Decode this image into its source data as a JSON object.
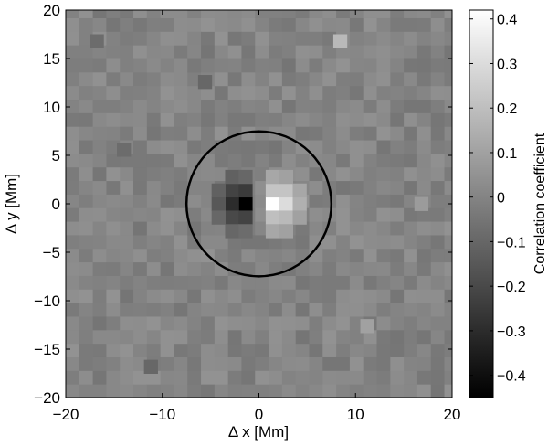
{
  "chart_data": {
    "type": "heatmap",
    "title": "",
    "xlabel": "Δ x [Mm]",
    "ylabel": "Δ y [Mm]",
    "xlim": [
      -20,
      20
    ],
    "ylim": [
      -20,
      20
    ],
    "xticks": [
      -20,
      -10,
      0,
      10,
      20
    ],
    "yticks": [
      -20,
      -15,
      -10,
      -5,
      0,
      5,
      10,
      15,
      20
    ],
    "xtick_labels": [
      "−20",
      "−10",
      "0",
      "10",
      "20"
    ],
    "ytick_labels": [
      "−20",
      "−15",
      "−10",
      "−5",
      "0",
      "5",
      "10",
      "15",
      "20"
    ],
    "colormap": "gray",
    "colorbar": {
      "label": "Correlation coefficient",
      "range": [
        -0.45,
        0.42
      ],
      "ticks": [
        -0.4,
        -0.3,
        -0.2,
        -0.1,
        0,
        0.1,
        0.2,
        0.3,
        0.4
      ],
      "tick_labels": [
        "−0.4",
        "−0.3",
        "−0.2",
        "−0.1",
        "0",
        "0.1",
        "0.2",
        "0.3",
        "0.4"
      ]
    },
    "grid_cell_size_Mm": 1.4,
    "background_value": 0.0,
    "cells": [
      {
        "x": -1.4,
        "y": 0,
        "value": -0.45
      },
      {
        "x": -2.8,
        "y": 0,
        "value": -0.3
      },
      {
        "x": -2.8,
        "y": 1.4,
        "value": -0.22
      },
      {
        "x": -1.4,
        "y": 1.4,
        "value": -0.25
      },
      {
        "x": -2.8,
        "y": -1.4,
        "value": -0.2
      },
      {
        "x": -1.4,
        "y": -1.4,
        "value": -0.22
      },
      {
        "x": -4.2,
        "y": 0,
        "value": -0.15
      },
      {
        "x": -4.2,
        "y": 1.4,
        "value": -0.12
      },
      {
        "x": -4.2,
        "y": -1.4,
        "value": -0.1
      },
      {
        "x": -2.8,
        "y": 2.8,
        "value": -0.12
      },
      {
        "x": -1.4,
        "y": 2.8,
        "value": -0.1
      },
      {
        "x": -2.8,
        "y": -2.8,
        "value": -0.1
      },
      {
        "x": -1.4,
        "y": -2.8,
        "value": -0.08
      },
      {
        "x": 1.4,
        "y": 0,
        "value": 0.42
      },
      {
        "x": 2.8,
        "y": 0,
        "value": 0.3
      },
      {
        "x": 1.4,
        "y": 1.4,
        "value": 0.22
      },
      {
        "x": 2.8,
        "y": 1.4,
        "value": 0.22
      },
      {
        "x": 1.4,
        "y": -1.4,
        "value": 0.2
      },
      {
        "x": 2.8,
        "y": -1.4,
        "value": 0.18
      },
      {
        "x": 4.2,
        "y": 0,
        "value": 0.15
      },
      {
        "x": 4.2,
        "y": 1.4,
        "value": 0.12
      },
      {
        "x": 4.2,
        "y": -1.4,
        "value": 0.1
      },
      {
        "x": 1.4,
        "y": 2.8,
        "value": 0.12
      },
      {
        "x": 2.8,
        "y": 2.8,
        "value": 0.1
      },
      {
        "x": 1.4,
        "y": -2.8,
        "value": 0.12
      },
      {
        "x": 2.8,
        "y": -2.8,
        "value": 0.1
      },
      {
        "x": 8.4,
        "y": 16.8,
        "value": 0.18
      },
      {
        "x": -5.6,
        "y": 12.6,
        "value": -0.1
      },
      {
        "x": -14.0,
        "y": 5.6,
        "value": -0.08
      },
      {
        "x": -11.2,
        "y": -16.8,
        "value": -0.1
      },
      {
        "x": 11.2,
        "y": -12.6,
        "value": 0.1
      },
      {
        "x": 16.8,
        "y": 0,
        "value": 0.08
      },
      {
        "x": -16.8,
        "y": 16.8,
        "value": -0.08
      }
    ],
    "circle": {
      "center": [
        0,
        0
      ],
      "radius": 7.5
    }
  }
}
